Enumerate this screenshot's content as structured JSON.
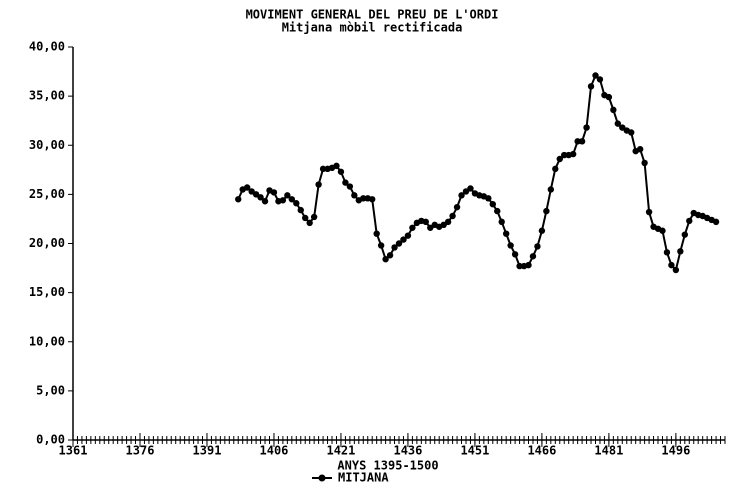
{
  "chart_data": {
    "type": "line",
    "title": "MOVIMENT GENERAL DEL PREU DE L'ORDI",
    "subtitle": "Mitjana mòbil rectificada",
    "x_label": "ANYS 1395-1500",
    "x": [
      1398,
      1399,
      1400,
      1401,
      1402,
      1403,
      1404,
      1405,
      1406,
      1407,
      1408,
      1409,
      1410,
      1411,
      1412,
      1413,
      1414,
      1415,
      1416,
      1417,
      1418,
      1419,
      1420,
      1421,
      1422,
      1423,
      1424,
      1425,
      1426,
      1427,
      1428,
      1429,
      1430,
      1431,
      1432,
      1433,
      1434,
      1435,
      1436,
      1437,
      1438,
      1439,
      1440,
      1441,
      1442,
      1443,
      1444,
      1445,
      1446,
      1447,
      1448,
      1449,
      1450,
      1451,
      1452,
      1453,
      1454,
      1455,
      1456,
      1457,
      1458,
      1459,
      1460,
      1461,
      1462,
      1463,
      1464,
      1465,
      1466,
      1467,
      1468,
      1469,
      1470,
      1471,
      1472,
      1473,
      1474,
      1475,
      1476,
      1477,
      1478,
      1479,
      1480,
      1481,
      1482,
      1483,
      1484,
      1485,
      1486,
      1487,
      1488,
      1489,
      1490,
      1491,
      1492,
      1493,
      1494,
      1495,
      1496,
      1497,
      1498,
      1499,
      1500,
      1501,
      1502,
      1503,
      1504,
      1505
    ],
    "series": [
      {
        "name": "MITJANA",
        "color": "#000000",
        "values": [
          24.5,
          25.5,
          25.7,
          25.3,
          25.0,
          24.7,
          24.3,
          25.4,
          25.2,
          24.3,
          24.4,
          24.9,
          24.5,
          24.1,
          23.4,
          22.6,
          22.1,
          22.7,
          26.0,
          27.6,
          27.6,
          27.7,
          27.9,
          27.3,
          26.2,
          25.8,
          24.9,
          24.4,
          24.6,
          24.6,
          24.5,
          21.0,
          19.8,
          18.4,
          18.8,
          19.6,
          20.0,
          20.4,
          20.8,
          21.6,
          22.1,
          22.3,
          22.2,
          21.6,
          21.9,
          21.7,
          21.9,
          22.2,
          22.8,
          23.7,
          24.9,
          25.3,
          25.6,
          25.1,
          24.9,
          24.8,
          24.6,
          24.0,
          23.3,
          22.2,
          21.0,
          19.8,
          18.9,
          17.7,
          17.7,
          17.8,
          18.7,
          19.7,
          21.3,
          23.3,
          25.5,
          27.6,
          28.6,
          29.0,
          29.0,
          29.1,
          30.4,
          30.4,
          31.8,
          36.0,
          37.1,
          36.7,
          35.1,
          34.9,
          33.6,
          32.2,
          31.8,
          31.5,
          31.3,
          29.4,
          29.6,
          28.2,
          23.2,
          21.7,
          21.5,
          21.3,
          19.1,
          17.8,
          17.3,
          19.2,
          20.9,
          22.3,
          23.1,
          22.9,
          22.8,
          22.6,
          22.4,
          22.2
        ]
      }
    ],
    "xlim": [
      1361,
      1507
    ],
    "xticks": [
      1361,
      1376,
      1391,
      1406,
      1421,
      1436,
      1451,
      1466,
      1481,
      1496
    ],
    "ylim": [
      0,
      40
    ],
    "yticks": [
      {
        "value": 0,
        "label": "0,00"
      },
      {
        "value": 5,
        "label": "5,00"
      },
      {
        "value": 10,
        "label": "10,00"
      },
      {
        "value": 15,
        "label": "15,00"
      },
      {
        "value": 20,
        "label": "20,00"
      },
      {
        "value": 25,
        "label": "25,00"
      },
      {
        "value": 30,
        "label": "30,00"
      },
      {
        "value": 35,
        "label": "35,00"
      },
      {
        "value": 40,
        "label": "40,00"
      }
    ],
    "grid": false
  }
}
